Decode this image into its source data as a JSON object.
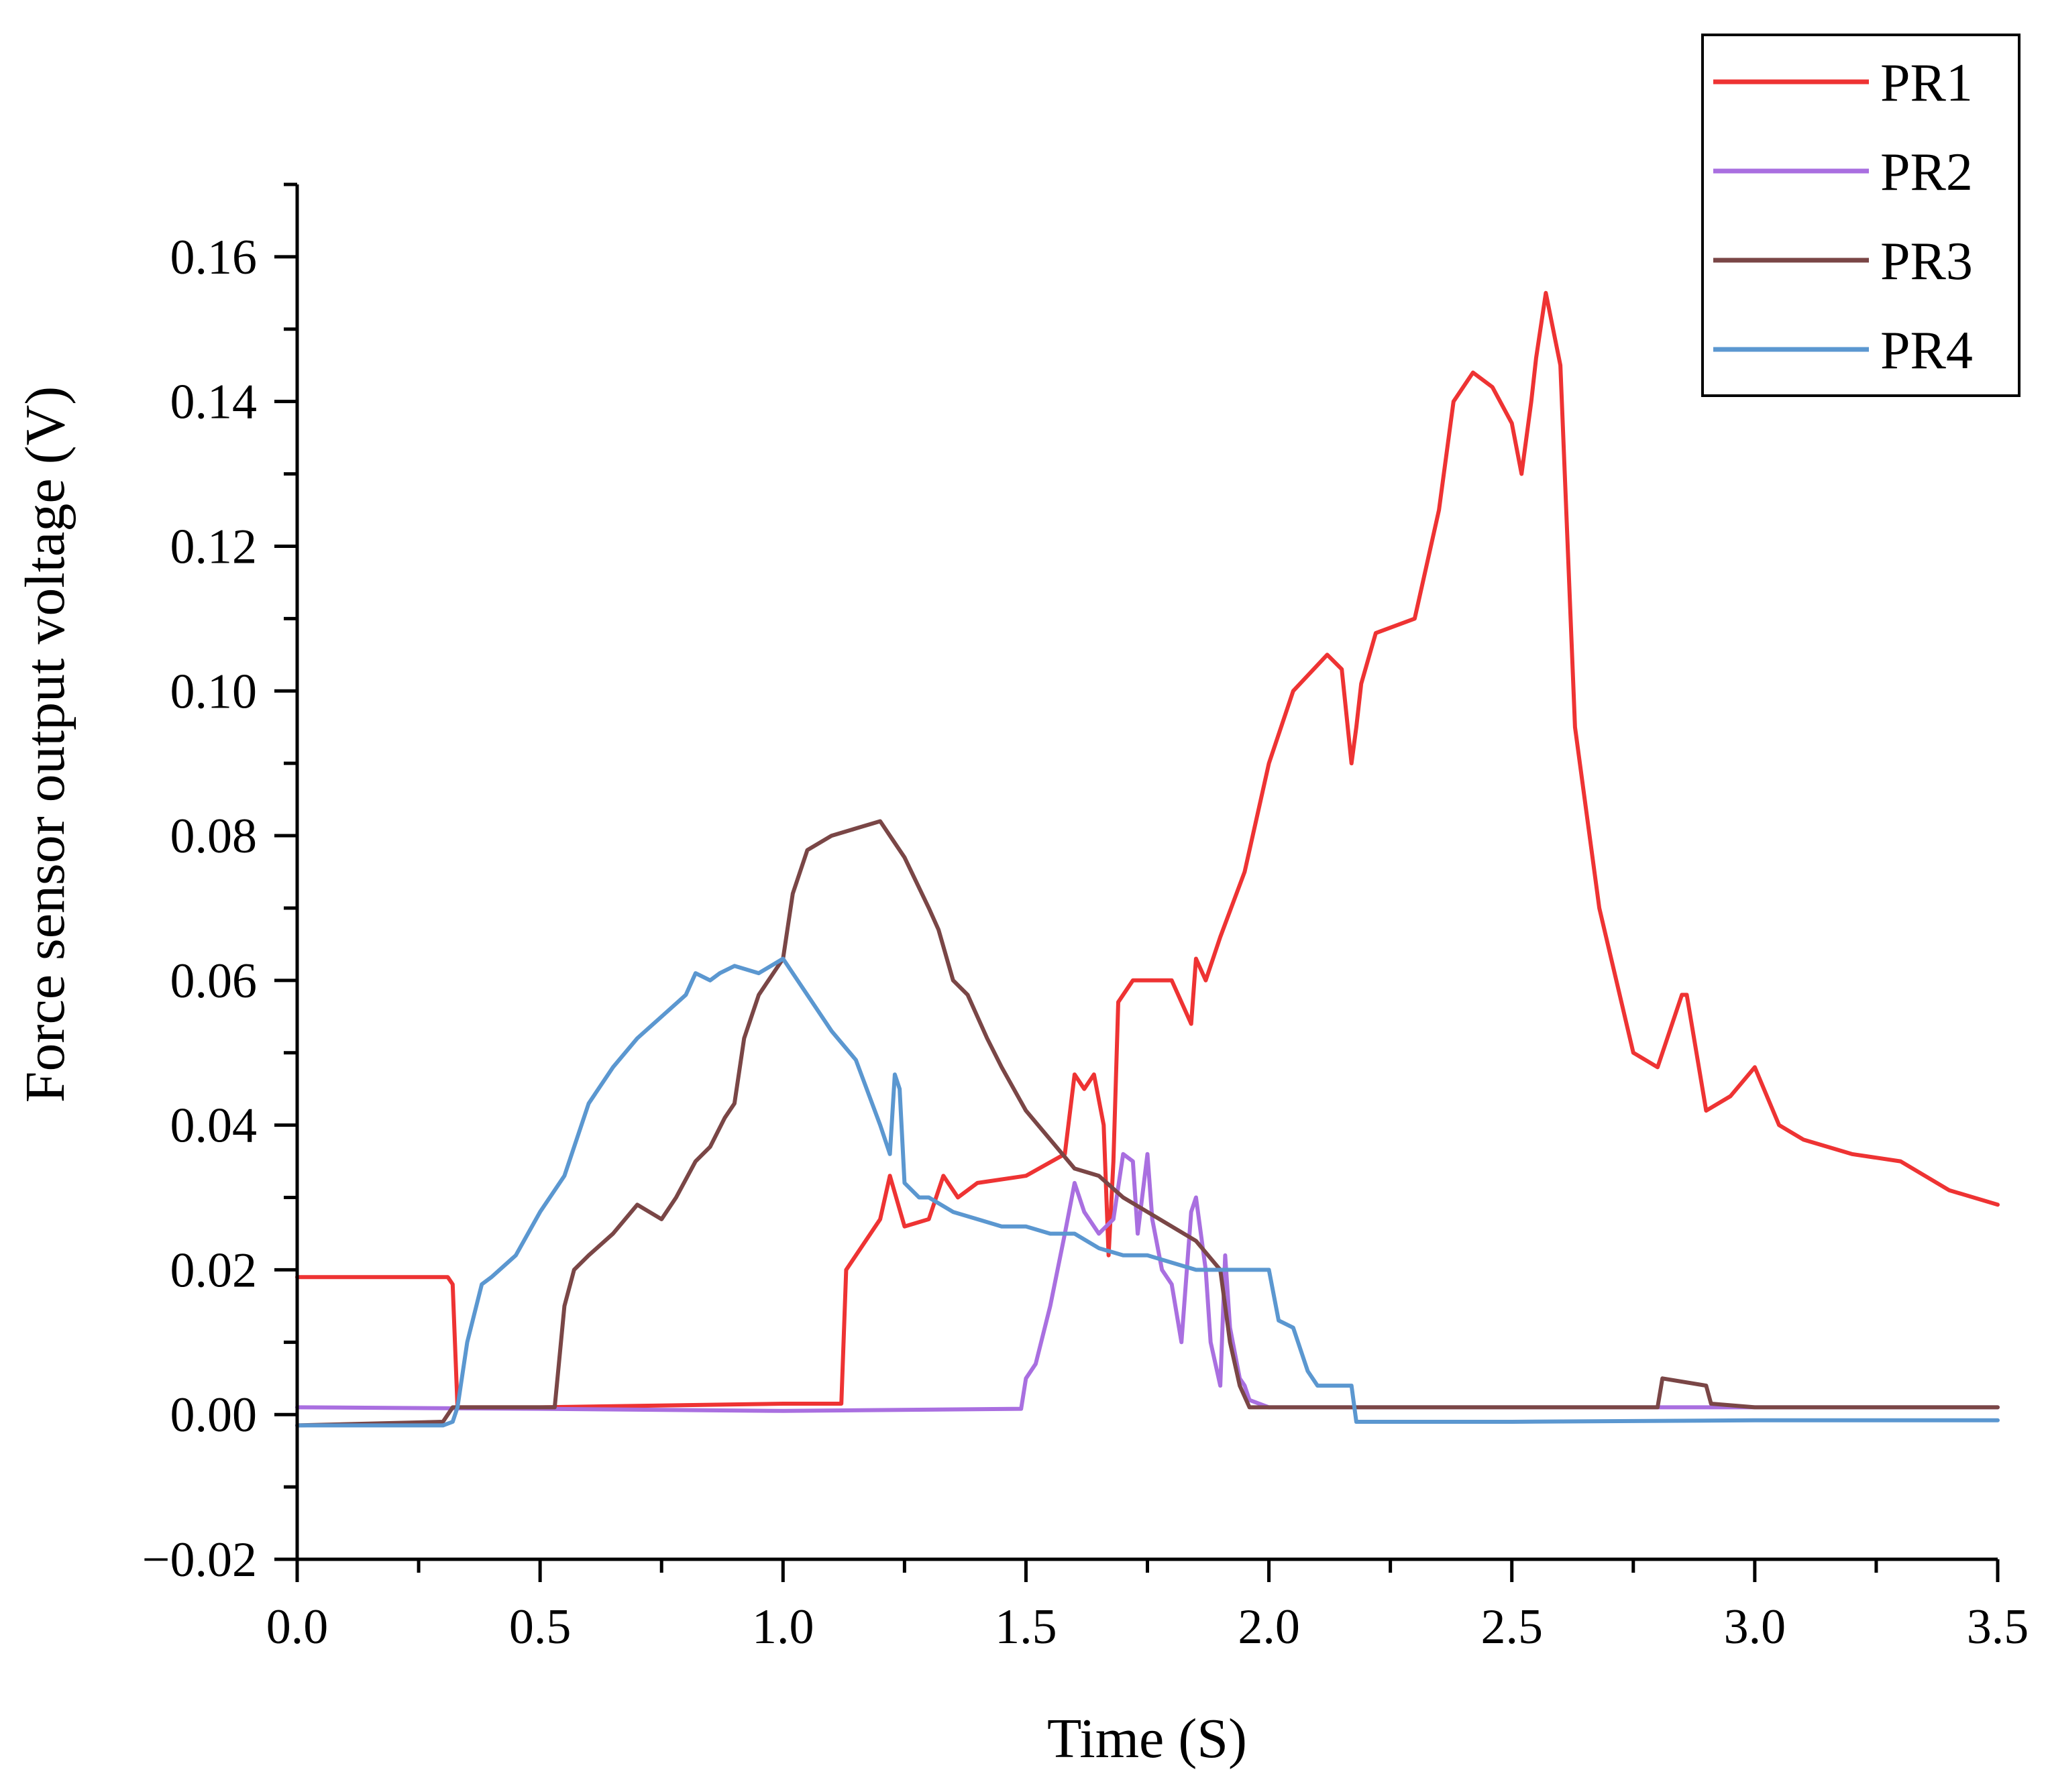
{
  "chart_data": {
    "type": "line",
    "title": "",
    "xlabel": "Time (S)",
    "ylabel": "Force sensor output voltage (V)",
    "xlim": [
      0,
      3.5
    ],
    "ylim": [
      -0.02,
      0.17
    ],
    "xticks": [
      0.0,
      0.5,
      1.0,
      1.5,
      2.0,
      2.5,
      3.0,
      3.5
    ],
    "xtick_labels": [
      "0.0",
      "0.5",
      "1.0",
      "1.5",
      "2.0",
      "2.5",
      "3.0",
      "3.5"
    ],
    "yticks": [
      -0.02,
      0.0,
      0.02,
      0.04,
      0.06,
      0.08,
      0.1,
      0.12,
      0.14,
      0.16
    ],
    "ytick_labels": [
      "−0.02",
      "0.00",
      "0.02",
      "0.04",
      "0.06",
      "0.08",
      "0.10",
      "0.12",
      "0.14",
      "0.16"
    ],
    "grid": false,
    "legend_position": "top-right",
    "series": [
      {
        "name": "PR1",
        "color": "#ee3333",
        "x": [
          0.0,
          0.31,
          0.32,
          0.33,
          0.5,
          1.0,
          1.12,
          1.13,
          1.2,
          1.22,
          1.25,
          1.3,
          1.33,
          1.36,
          1.4,
          1.5,
          1.58,
          1.6,
          1.62,
          1.64,
          1.66,
          1.67,
          1.68,
          1.69,
          1.72,
          1.8,
          1.84,
          1.85,
          1.87,
          1.9,
          1.95,
          2.0,
          2.05,
          2.12,
          2.15,
          2.17,
          2.18,
          2.19,
          2.22,
          2.3,
          2.35,
          2.38,
          2.42,
          2.46,
          2.5,
          2.52,
          2.54,
          2.55,
          2.57,
          2.6,
          2.63,
          2.68,
          2.75,
          2.8,
          2.85,
          2.86,
          2.9,
          2.95,
          3.0,
          3.05,
          3.1,
          3.2,
          3.3,
          3.4,
          3.5
        ],
        "y": [
          0.019,
          0.019,
          0.018,
          0.001,
          0.001,
          0.0015,
          0.0015,
          0.02,
          0.027,
          0.033,
          0.026,
          0.027,
          0.033,
          0.03,
          0.032,
          0.033,
          0.036,
          0.047,
          0.045,
          0.047,
          0.04,
          0.022,
          0.035,
          0.057,
          0.06,
          0.06,
          0.054,
          0.063,
          0.06,
          0.066,
          0.075,
          0.09,
          0.1,
          0.105,
          0.103,
          0.09,
          0.095,
          0.101,
          0.108,
          0.11,
          0.125,
          0.14,
          0.144,
          0.142,
          0.137,
          0.13,
          0.14,
          0.146,
          0.155,
          0.145,
          0.095,
          0.07,
          0.05,
          0.048,
          0.058,
          0.058,
          0.042,
          0.044,
          0.048,
          0.04,
          0.038,
          0.036,
          0.035,
          0.031,
          0.029
        ]
      },
      {
        "name": "PR2",
        "color": "#a96fe0",
        "x": [
          0.0,
          0.5,
          1.0,
          1.49,
          1.5,
          1.52,
          1.55,
          1.58,
          1.6,
          1.62,
          1.65,
          1.68,
          1.7,
          1.72,
          1.73,
          1.75,
          1.76,
          1.78,
          1.8,
          1.82,
          1.84,
          1.85,
          1.87,
          1.88,
          1.9,
          1.91,
          1.92,
          1.94,
          1.95,
          1.96,
          2.0,
          2.5,
          3.0,
          3.5
        ],
        "y": [
          0.001,
          0.0008,
          0.0005,
          0.0008,
          0.005,
          0.007,
          0.015,
          0.025,
          0.032,
          0.028,
          0.025,
          0.027,
          0.036,
          0.035,
          0.025,
          0.036,
          0.027,
          0.02,
          0.018,
          0.01,
          0.028,
          0.03,
          0.02,
          0.01,
          0.004,
          0.022,
          0.012,
          0.005,
          0.004,
          0.002,
          0.001,
          0.001,
          0.001,
          0.001
        ]
      },
      {
        "name": "PR3",
        "color": "#7a4646",
        "x": [
          0.0,
          0.3,
          0.32,
          0.5,
          0.53,
          0.55,
          0.57,
          0.6,
          0.65,
          0.7,
          0.75,
          0.78,
          0.82,
          0.85,
          0.88,
          0.9,
          0.92,
          0.95,
          0.97,
          1.0,
          1.02,
          1.05,
          1.1,
          1.15,
          1.2,
          1.22,
          1.25,
          1.3,
          1.32,
          1.35,
          1.38,
          1.4,
          1.42,
          1.45,
          1.5,
          1.55,
          1.6,
          1.65,
          1.7,
          1.75,
          1.8,
          1.85,
          1.9,
          1.92,
          1.94,
          1.96,
          2.0,
          2.5,
          2.8,
          2.81,
          2.9,
          2.91,
          3.0,
          3.5
        ],
        "y": [
          -0.0015,
          -0.001,
          0.001,
          0.001,
          0.001,
          0.015,
          0.02,
          0.022,
          0.025,
          0.029,
          0.027,
          0.03,
          0.035,
          0.037,
          0.041,
          0.043,
          0.052,
          0.058,
          0.06,
          0.063,
          0.072,
          0.078,
          0.08,
          0.081,
          0.082,
          0.08,
          0.077,
          0.07,
          0.067,
          0.06,
          0.058,
          0.055,
          0.052,
          0.048,
          0.042,
          0.038,
          0.034,
          0.033,
          0.03,
          0.028,
          0.026,
          0.024,
          0.02,
          0.01,
          0.004,
          0.001,
          0.001,
          0.001,
          0.001,
          0.005,
          0.004,
          0.0015,
          0.001,
          0.001
        ]
      },
      {
        "name": "PR4",
        "color": "#5b97d0",
        "x": [
          0.0,
          0.3,
          0.32,
          0.33,
          0.35,
          0.38,
          0.4,
          0.45,
          0.5,
          0.55,
          0.6,
          0.65,
          0.7,
          0.75,
          0.8,
          0.82,
          0.85,
          0.87,
          0.9,
          0.95,
          1.0,
          1.05,
          1.1,
          1.15,
          1.2,
          1.22,
          1.23,
          1.24,
          1.25,
          1.28,
          1.3,
          1.35,
          1.4,
          1.45,
          1.5,
          1.55,
          1.6,
          1.65,
          1.7,
          1.75,
          1.8,
          1.85,
          1.9,
          1.95,
          2.0,
          2.02,
          2.05,
          2.08,
          2.1,
          2.15,
          2.17,
          2.18,
          2.5,
          3.0,
          3.5
        ],
        "y": [
          -0.0015,
          -0.0015,
          -0.001,
          0.001,
          0.01,
          0.018,
          0.019,
          0.022,
          0.028,
          0.033,
          0.043,
          0.048,
          0.052,
          0.055,
          0.058,
          0.061,
          0.06,
          0.061,
          0.062,
          0.061,
          0.063,
          0.058,
          0.053,
          0.049,
          0.04,
          0.036,
          0.047,
          0.045,
          0.032,
          0.03,
          0.03,
          0.028,
          0.027,
          0.026,
          0.026,
          0.025,
          0.025,
          0.023,
          0.022,
          0.022,
          0.021,
          0.02,
          0.02,
          0.02,
          0.02,
          0.013,
          0.012,
          0.006,
          0.004,
          0.004,
          0.004,
          -0.001,
          -0.001,
          -0.0008,
          -0.0008
        ]
      }
    ]
  }
}
